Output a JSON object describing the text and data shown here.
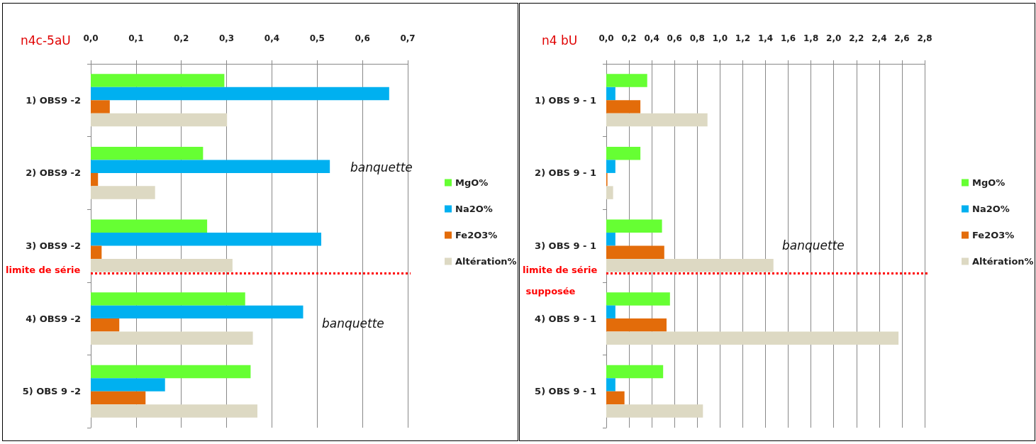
{
  "chart_data": [
    {
      "type": "bar",
      "title": "n4c-5aU",
      "orientation": "horizontal",
      "categories": [
        "1) OBS9 -2",
        "2) OBS9 -2",
        "3) OBS9 -2",
        "4) OBS9 -2",
        "5) OBS 9 -2"
      ],
      "series": [
        {
          "name": "MgO%",
          "color": "#66ff33",
          "values": [
            0.295,
            0.248,
            0.257,
            0.341,
            0.353
          ]
        },
        {
          "name": "Na2O%",
          "color": "#00b0f0",
          "values": [
            0.659,
            0.528,
            0.509,
            0.469,
            0.164
          ]
        },
        {
          "name": "Fe2O3%",
          "color": "#e36c0a",
          "values": [
            0.042,
            0.016,
            0.024,
            0.063,
            0.121
          ]
        },
        {
          "name": "Altération%",
          "color": "#ddd9c3",
          "values": [
            0.301,
            0.142,
            0.313,
            0.358,
            0.368
          ]
        }
      ],
      "xlim": [
        0,
        0.7
      ],
      "xticks": [
        {
          "value": 0,
          "label": "0,0"
        },
        {
          "value": 0.1,
          "label": "0,1"
        },
        {
          "value": 0.2,
          "label": "0,2"
        },
        {
          "value": 0.3,
          "label": "0,3"
        },
        {
          "value": 0.4,
          "label": "0,4"
        },
        {
          "value": 0.5,
          "label": "0,5"
        },
        {
          "value": 0.6,
          "label": "0,6"
        },
        {
          "value": 0.7,
          "label": "0,7"
        }
      ],
      "grid": "x",
      "legend": "right",
      "ref_lines": [
        {
          "axis": "y",
          "value": "3) OBS9 -2",
          "label": "limite de série",
          "color": "#ff0000",
          "line_style": "dotted"
        }
      ],
      "annotations": [
        "banquette",
        "banquette"
      ]
    },
    {
      "type": "bar",
      "title": "n4 bU",
      "orientation": "horizontal",
      "categories": [
        "1) OBS 9 - 1",
        "2) OBS 9 - 1",
        "3) OBS 9 - 1",
        "4) OBS 9 - 1",
        "5) OBS 9 - 1"
      ],
      "series": [
        {
          "name": "MgO%",
          "color": "#66ff33",
          "values": [
            0.36,
            0.3,
            0.49,
            0.56,
            0.5
          ]
        },
        {
          "name": "Na2O%",
          "color": "#00b0f0",
          "values": [
            0.08,
            0.08,
            0.08,
            0.08,
            0.08
          ]
        },
        {
          "name": "Fe2O3%",
          "color": "#e36c0a",
          "values": [
            0.3,
            0.01,
            0.51,
            0.53,
            0.16
          ]
        },
        {
          "name": "Altération%",
          "color": "#ddd9c3",
          "values": [
            0.89,
            0.06,
            1.47,
            2.57,
            0.85
          ]
        }
      ],
      "xlim": [
        0,
        2.8
      ],
      "xticks": [
        {
          "value": 0,
          "label": "0,0"
        },
        {
          "value": 0.2,
          "label": "0,2"
        },
        {
          "value": 0.4,
          "label": "0,4"
        },
        {
          "value": 0.6,
          "label": "0,6"
        },
        {
          "value": 0.8,
          "label": "0,8"
        },
        {
          "value": 1,
          "label": "1,0"
        },
        {
          "value": 1.2,
          "label": "1,2"
        },
        {
          "value": 1.4,
          "label": "1,4"
        },
        {
          "value": 1.6,
          "label": "1,6"
        },
        {
          "value": 1.8,
          "label": "1,8"
        },
        {
          "value": 2,
          "label": "2,0"
        },
        {
          "value": 2.2,
          "label": "2,2"
        },
        {
          "value": 2.4,
          "label": "2,4"
        },
        {
          "value": 2.6,
          "label": "2,6"
        },
        {
          "value": 2.8,
          "label": "2,8"
        }
      ],
      "grid": "x",
      "legend": "right",
      "ref_lines": [
        {
          "axis": "y",
          "value": "3) OBS 9 - 1",
          "label": "limite de série supposée",
          "color": "#ff0000",
          "line_style": "dotted"
        }
      ],
      "annotations": [
        "banquette"
      ]
    }
  ]
}
